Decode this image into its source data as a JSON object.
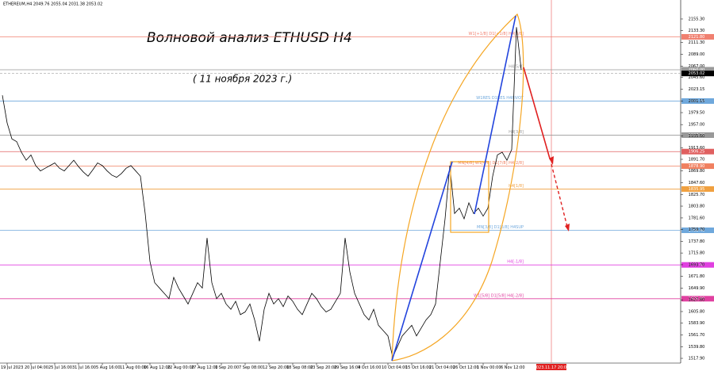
{
  "chart_data": {
    "type": "line",
    "header": "ETHEREUM,H4  2049.76 2055.04 2031.38 2053.02",
    "title": "Волновой анализ ETHUSD H4",
    "subtitle": "( 11 ноября 2023 г.)",
    "series": [
      {
        "color": "#000000",
        "values": [
          2012,
          1960,
          1930,
          1925,
          1905,
          1890,
          1900,
          1880,
          1870,
          1875,
          1880,
          1885,
          1875,
          1870,
          1880,
          1890,
          1878,
          1868,
          1860,
          1872,
          1885,
          1880,
          1870,
          1862,
          1858,
          1865,
          1875,
          1880,
          1870,
          1860,
          1790,
          1700,
          1660,
          1650,
          1640,
          1630,
          1670,
          1650,
          1635,
          1620,
          1640,
          1660,
          1650,
          1744,
          1660,
          1630,
          1640,
          1620,
          1610,
          1625,
          1600,
          1605,
          1620,
          1590,
          1550,
          1610,
          1640,
          1620,
          1630,
          1615,
          1635,
          1625,
          1610,
          1600,
          1620,
          1640,
          1630,
          1615,
          1605,
          1610,
          1625,
          1640,
          1744,
          1680,
          1640,
          1620,
          1600,
          1590,
          1610,
          1580,
          1570,
          1560,
          1520,
          1540,
          1560,
          1570,
          1580,
          1560,
          1575,
          1590,
          1600,
          1620,
          1700,
          1780,
          1880,
          1790,
          1800,
          1780,
          1810,
          1790,
          1800,
          1785,
          1800,
          1860,
          1900,
          1905,
          1890,
          1910,
          2140,
          2060
        ]
      }
    ],
    "categories": [
      null,
      "19 Jul 2023",
      null,
      null,
      null,
      null,
      "20 Jul 04:00",
      null,
      null,
      null,
      null,
      "25 Jul 16:00",
      null,
      null,
      null,
      null,
      "31 Jul 16:00",
      null,
      null,
      null,
      null,
      "5 Aug 16:00",
      null,
      null,
      null,
      null,
      "11 Aug 00:00",
      null,
      null,
      null,
      null,
      "16 Aug 12:00",
      null,
      null,
      null,
      null,
      "22 Aug 00:00",
      null,
      null,
      null,
      null,
      "27 Aug 12:00",
      null,
      null,
      null,
      null,
      "1 Sep 20:00",
      null,
      null,
      null,
      null,
      "7 Sep 08:00",
      null,
      null,
      null,
      null,
      "12 Sep 20:00",
      null,
      null,
      null,
      null,
      "18 Sep 08:00",
      null,
      null,
      null,
      null,
      "23 Sep 20:00",
      null,
      null,
      null,
      null,
      "29 Sep 16:00",
      null,
      null,
      null,
      null,
      "4 Oct 16:00",
      null,
      null,
      null,
      null,
      "10 Oct 04:00",
      null,
      null,
      null,
      null,
      "15 Oct 16:00",
      null,
      null,
      null,
      null,
      "21 Oct 04:00",
      null,
      null,
      null,
      null,
      "26 Oct 12:00",
      null,
      null,
      null,
      null,
      "1 Nov 00:00",
      null,
      null,
      null,
      null,
      "6 Nov 12:00",
      null,
      null,
      null
    ],
    "ylim": [
      1509,
      2191
    ],
    "yticks": [
      {
        "value": 2155.3,
        "label": "2155.30"
      },
      {
        "value": 2133.3,
        "label": "2133.30"
      },
      {
        "value": 2111.3,
        "label": "2111.30"
      },
      {
        "value": 2089,
        "label": "2089.00"
      },
      {
        "value": 2067,
        "label": "2067.00"
      },
      {
        "value": 2045.6,
        "label": "2045.60"
      },
      {
        "value": 2023.15,
        "label": "2023.15"
      },
      {
        "value": 2001.15,
        "label": "2001.15"
      },
      {
        "value": 1979.5,
        "label": "1979.50"
      },
      {
        "value": 1957,
        "label": "1957.00"
      },
      {
        "value": 1935.6,
        "label": "1935.60"
      },
      {
        "value": 1913.6,
        "label": "1913.60"
      },
      {
        "value": 1891.7,
        "label": "1891.70"
      },
      {
        "value": 1869.8,
        "label": "1869.80"
      },
      {
        "value": 1847.6,
        "label": "1847.60"
      },
      {
        "value": 1825.7,
        "label": "1825.70"
      },
      {
        "value": 1803.8,
        "label": "1803.80"
      },
      {
        "value": 1781.6,
        "label": "1781.60"
      },
      {
        "value": 1759.7,
        "label": "1759.70"
      },
      {
        "value": 1737.8,
        "label": "1737.80"
      },
      {
        "value": 1715.8,
        "label": "1715.80"
      },
      {
        "value": 1693.7,
        "label": "1693.70"
      },
      {
        "value": 1671.8,
        "label": "1671.80"
      },
      {
        "value": 1649.9,
        "label": "1649.90"
      },
      {
        "value": 1627.8,
        "label": "1627.80"
      },
      {
        "value": 1605.8,
        "label": "1605.80"
      },
      {
        "value": 1583.9,
        "label": "1583.90"
      },
      {
        "value": 1561.7,
        "label": "1561.70"
      },
      {
        "value": 1539.8,
        "label": "1539.80"
      },
      {
        "value": 1517.9,
        "label": "1517.90"
      }
    ],
    "levels": [
      {
        "price": {
          "value": 2121.8,
          "label": "2121.80"
        },
        "color": "#f08070",
        "text": "W1[+1/8] D1[+1/8] H4[8/8]"
      },
      {
        "price": {
          "value": 2060,
          "label": "2060.00"
        },
        "color": "#999999",
        "text": "H4[5/8]"
      },
      {
        "price": {
          "value": 2001.2,
          "label": "2001.20"
        },
        "color": "#6fa8dc",
        "text": "W1RES D1RES H4PIVOT"
      },
      {
        "price": {
          "value": 1937.2,
          "label": "1937.20"
        },
        "color": "#999999",
        "text": "H4[3/8]"
      },
      {
        "price": {
          "value": 1906.25,
          "label": "1906.25"
        },
        "color": "#e06060"
      },
      {
        "price": {
          "value": 1878.9,
          "label": "1878.90"
        },
        "color": "#f08060",
        "text": "MN[4/8] W1[4/8] D1[7/8] H4[2/8]"
      },
      {
        "price": {
          "value": 1835.95,
          "label": "1835.95"
        },
        "color": "#f0a040",
        "text": "H4[1/8]"
      },
      {
        "price": {
          "value": 1758.4,
          "label": "1758.40"
        },
        "color": "#6fa8dc",
        "text": "MN[3/8] D1[6/8] H4SUP"
      },
      {
        "price": {
          "value": 1693.4,
          "label": "1693.40"
        },
        "color": "#e040e0",
        "text": "H4[-1/8]"
      },
      {
        "price": {
          "value": 1629.9,
          "label": "1629.90"
        },
        "color": "#e040a0",
        "text": "W1[5/8] D1[5/8] H4[-2/8]"
      }
    ],
    "current_price": {
      "value": 2053.02,
      "label": "2053.02"
    },
    "vline_label": "2023.11.17 20:00"
  }
}
